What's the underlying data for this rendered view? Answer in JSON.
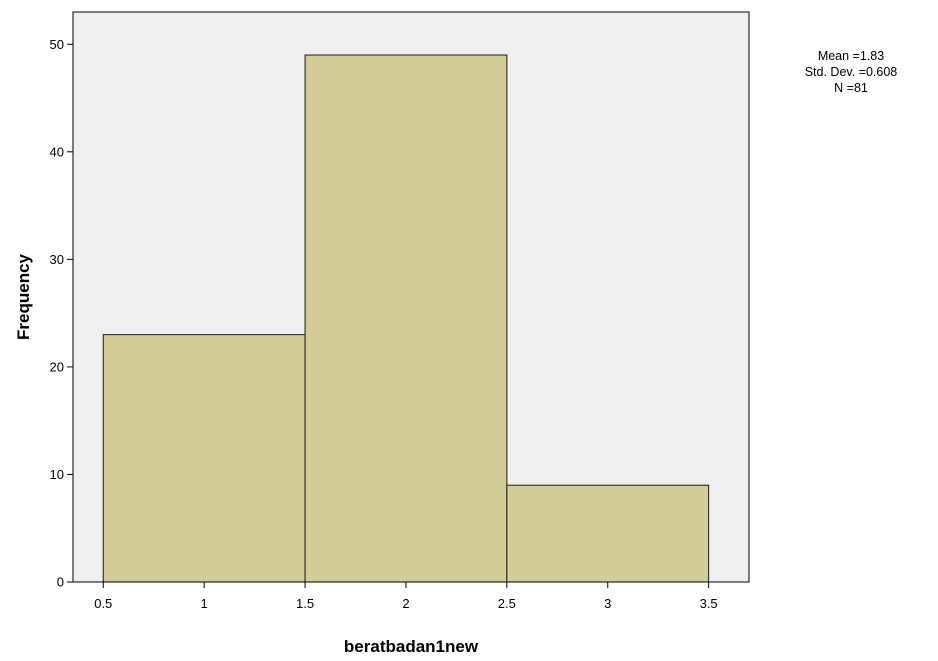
{
  "chart_data": {
    "type": "bar",
    "subtype": "histogram",
    "bins": [
      {
        "start": 0.5,
        "end": 1.5,
        "count": 23
      },
      {
        "start": 1.5,
        "end": 2.5,
        "count": 49
      },
      {
        "start": 2.5,
        "end": 3.5,
        "count": 9
      }
    ],
    "x": [
      0.5,
      1.5,
      2.5
    ],
    "values": [
      23,
      49,
      9
    ],
    "xlabel": "beratbadan1new",
    "ylabel": "Frequency",
    "xlim": [
      0.35,
      3.7
    ],
    "ylim": [
      0,
      53
    ],
    "xticks": [
      0.5,
      1,
      1.5,
      2,
      2.5,
      3,
      3.5
    ],
    "xtick_labels": [
      "0.5",
      "1",
      "1.5",
      "2",
      "2.5",
      "3",
      "3.5"
    ],
    "yticks": [
      0,
      10,
      20,
      30,
      40,
      50
    ],
    "ytick_labels": [
      "0",
      "10",
      "20",
      "30",
      "40",
      "50"
    ],
    "grid": false,
    "statistics": {
      "mean_text": "Mean =1.83",
      "sd_text": "Std. Dev. =0.608",
      "n_text": "N =81"
    },
    "colors": {
      "bar_fill": "#d3cd97",
      "bar_stroke": "#1a1a1a",
      "plot_background": "#f0f0f0",
      "frame": "#000000"
    }
  }
}
